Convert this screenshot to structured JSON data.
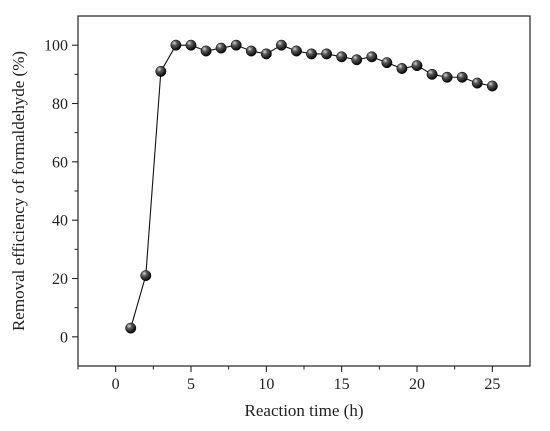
{
  "chart_data": {
    "type": "line",
    "xlabel": "Reaction time (h)",
    "ylabel": "Removal efficiency of formaldehyde (%)",
    "xlim": [
      -2.5,
      27.5
    ],
    "ylim": [
      -10,
      110
    ],
    "x_ticks": [
      0,
      5,
      10,
      15,
      20,
      25
    ],
    "y_ticks": [
      0,
      20,
      40,
      60,
      80,
      100
    ],
    "x_tick_labels": [
      "0",
      "5",
      "10",
      "15",
      "20",
      "25"
    ],
    "y_tick_labels": [
      "0",
      "20",
      "40",
      "60",
      "80",
      "100"
    ],
    "grid": false,
    "marker": "filled-sphere",
    "series": [
      {
        "x": [
          1,
          2,
          3,
          4,
          5,
          6,
          7,
          8,
          9,
          10,
          11,
          12,
          13,
          14,
          15,
          16,
          17,
          18,
          19,
          20,
          21,
          22,
          23,
          24,
          25
        ],
        "y": [
          3,
          21,
          91,
          100,
          100,
          98,
          99,
          100,
          98,
          97,
          100,
          98,
          97,
          97,
          96,
          95,
          96,
          94,
          92,
          93,
          90,
          89,
          89,
          87,
          86
        ],
        "color": "#111111"
      }
    ]
  }
}
